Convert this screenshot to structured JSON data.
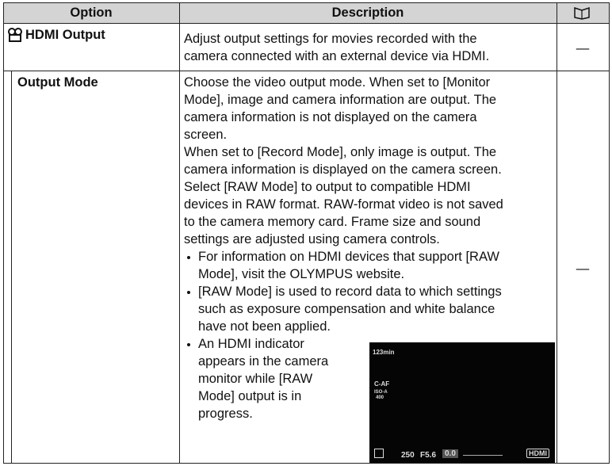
{
  "table": {
    "headers": [
      "Option",
      "Description"
    ],
    "rows": [
      {
        "option": "HDMI Output",
        "lines": [
          "Adjust output settings for movies recorded with the",
          "camera connected with an external device via HDMI."
        ],
        "ref": "—"
      },
      {
        "option": "Output Mode",
        "lines": [
          "Choose the video output mode. When set to [Monitor",
          "Mode], image and camera information are output. The",
          "camera information is not displayed on the camera",
          "screen.",
          "When set to [Record Mode], only image is output. The",
          "camera information is displayed on the camera screen.",
          "Select [RAW Mode] to output to compatible HDMI",
          "devices in RAW format. RAW-format video is not saved",
          "to the camera memory card. Frame size and sound",
          "settings are adjusted using camera controls."
        ],
        "bullets": [
          [
            "For information on HDMI devices that support [RAW",
            "Mode], visit the OLYMPUS website."
          ],
          [
            "[RAW Mode] is used to record data to which settings",
            "such as exposure compensation and white balance",
            "have not been applied."
          ],
          [
            "An HDMI indicator",
            "appears in the camera",
            "monitor while [RAW",
            "Mode] output is in",
            "progress."
          ]
        ],
        "ref": "—"
      }
    ]
  },
  "screen": {
    "time": "123min",
    "af": "C-AF",
    "iso": "ISO-A",
    "iso_value": "400",
    "shutter": "250",
    "aperture": "F5.6",
    "exposure": "0.0",
    "hdmi": "HDMI"
  }
}
